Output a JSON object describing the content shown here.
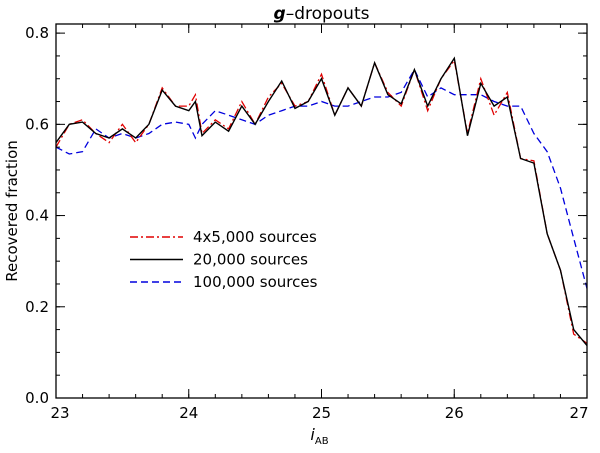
{
  "chart_data": {
    "type": "line",
    "title_italic": "g",
    "title_rest": "–dropouts",
    "xlabel_main": "i",
    "xlabel_sub": "AB",
    "ylabel": "Recovered  fraction",
    "xlim": [
      23,
      27
    ],
    "ylim": [
      0.0,
      0.82
    ],
    "xticks": [
      23,
      24,
      25,
      26,
      27
    ],
    "xtick_labels": [
      "23",
      "24",
      "25",
      "26",
      "27"
    ],
    "yticks": [
      0.0,
      0.2,
      0.4,
      0.6,
      0.8
    ],
    "ytick_labels": [
      "0.0",
      "0.2",
      "0.4",
      "0.6",
      "0.8"
    ],
    "legend_position": "center-left",
    "series": [
      {
        "name": "4x5,000  sources",
        "color": "#e00000",
        "style": "dashdot",
        "x": [
          23.0,
          23.1,
          23.2,
          23.3,
          23.4,
          23.5,
          23.6,
          23.7,
          23.8,
          23.9,
          24.0,
          24.05,
          24.1,
          24.2,
          24.3,
          24.4,
          24.5,
          24.6,
          24.7,
          24.8,
          24.9,
          25.0,
          25.1,
          25.2,
          25.3,
          25.4,
          25.5,
          25.6,
          25.7,
          25.8,
          25.9,
          26.0,
          26.1,
          26.2,
          26.3,
          26.4,
          26.5,
          26.6,
          26.7,
          26.8,
          26.9,
          27.0
        ],
        "y": [
          0.55,
          0.6,
          0.61,
          0.58,
          0.56,
          0.6,
          0.56,
          0.6,
          0.68,
          0.64,
          0.64,
          0.665,
          0.58,
          0.61,
          0.59,
          0.65,
          0.6,
          0.66,
          0.69,
          0.64,
          0.65,
          0.71,
          0.62,
          0.68,
          0.64,
          0.735,
          0.67,
          0.64,
          0.72,
          0.63,
          0.7,
          0.74,
          0.58,
          0.7,
          0.62,
          0.67,
          0.525,
          0.52,
          0.36,
          0.28,
          0.14,
          0.12
        ]
      },
      {
        "name": "20,000  sources",
        "color": "#000000",
        "style": "solid",
        "x": [
          23.0,
          23.1,
          23.2,
          23.3,
          23.4,
          23.5,
          23.6,
          23.7,
          23.8,
          23.9,
          24.0,
          24.05,
          24.1,
          24.2,
          24.3,
          24.4,
          24.5,
          24.6,
          24.7,
          24.8,
          24.9,
          25.0,
          25.1,
          25.2,
          25.3,
          25.4,
          25.5,
          25.6,
          25.7,
          25.8,
          25.9,
          26.0,
          26.1,
          26.2,
          26.3,
          26.4,
          26.5,
          26.6,
          26.7,
          26.8,
          26.9,
          27.0
        ],
        "y": [
          0.56,
          0.6,
          0.605,
          0.58,
          0.57,
          0.59,
          0.57,
          0.6,
          0.675,
          0.64,
          0.63,
          0.65,
          0.575,
          0.605,
          0.585,
          0.64,
          0.6,
          0.65,
          0.695,
          0.635,
          0.65,
          0.7,
          0.62,
          0.68,
          0.64,
          0.735,
          0.665,
          0.645,
          0.72,
          0.64,
          0.7,
          0.745,
          0.575,
          0.69,
          0.64,
          0.66,
          0.525,
          0.515,
          0.36,
          0.28,
          0.15,
          0.115
        ]
      },
      {
        "name": "100,000  sources",
        "color": "#0000dd",
        "style": "dashed",
        "x": [
          23.0,
          23.1,
          23.2,
          23.3,
          23.4,
          23.5,
          23.6,
          23.7,
          23.8,
          23.9,
          24.0,
          24.05,
          24.1,
          24.2,
          24.3,
          24.4,
          24.5,
          24.6,
          24.7,
          24.8,
          24.9,
          25.0,
          25.1,
          25.2,
          25.3,
          25.4,
          25.5,
          25.6,
          25.7,
          25.8,
          25.9,
          26.0,
          26.1,
          26.2,
          26.3,
          26.4,
          26.5,
          26.6,
          26.7,
          26.8,
          26.9,
          27.0
        ],
        "y": [
          0.55,
          0.535,
          0.54,
          0.59,
          0.57,
          0.58,
          0.57,
          0.58,
          0.6,
          0.605,
          0.6,
          0.57,
          0.6,
          0.63,
          0.62,
          0.61,
          0.6,
          0.62,
          0.63,
          0.64,
          0.64,
          0.65,
          0.64,
          0.64,
          0.65,
          0.66,
          0.66,
          0.67,
          0.72,
          0.66,
          0.68,
          0.665,
          0.665,
          0.665,
          0.65,
          0.64,
          0.64,
          0.58,
          0.54,
          0.46,
          0.35,
          0.24
        ]
      }
    ]
  }
}
